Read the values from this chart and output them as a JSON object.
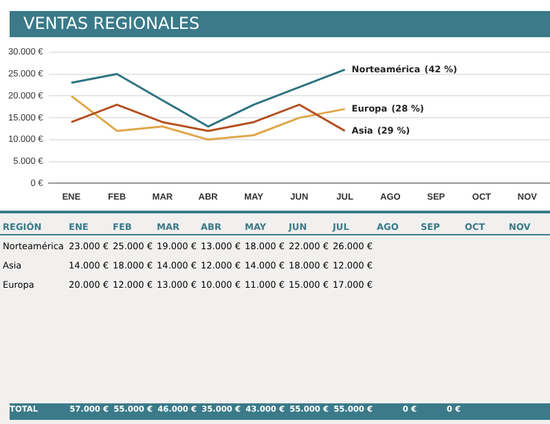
{
  "chart_data": {
    "type": "line",
    "title": "VENTAS REGIONALES",
    "categories": [
      "ENE",
      "FEB",
      "MAR",
      "ABR",
      "MAY",
      "JUN",
      "JUL",
      "AGO",
      "SEP",
      "OCT",
      "NOV"
    ],
    "series": [
      {
        "name": "Norteamérica",
        "color": "#2e7382",
        "values": [
          23000,
          25000,
          19000,
          13000,
          18000,
          22000,
          26000,
          null,
          null,
          null,
          null
        ],
        "value_labels": [
          "23.000 €",
          "25.000 €",
          "19.000 €",
          "13.000 €",
          "18.000 €",
          "22.000 €",
          "26.000 €",
          null,
          null,
          null,
          null
        ]
      },
      {
        "name": "Asia",
        "color": "#b5501f",
        "values": [
          14000,
          18000,
          14000,
          12000,
          14000,
          18000,
          12000,
          null,
          null,
          null,
          null
        ],
        "value_labels": [
          "14.000 €",
          "18.000 €",
          "14.000 €",
          "12.000 €",
          "14.000 €",
          "18.000 €",
          "12.000 €",
          null,
          null,
          null,
          null
        ]
      },
      {
        "name": "Europa",
        "color": "#e0a64a",
        "values": [
          20000,
          12000,
          13000,
          10000,
          11000,
          15000,
          17000,
          null,
          null,
          null,
          null
        ],
        "value_labels": [
          "20.000 €",
          "12.000 €",
          "13.000 €",
          "10.000 €",
          "11.000 €",
          "15.000 €",
          "17.000 €",
          null,
          null,
          null,
          null
        ]
      }
    ],
    "ylim": [
      0,
      30000
    ],
    "yticks": [
      {
        "value": 0,
        "label": "0 €"
      },
      {
        "value": 5000,
        "label": "5.000 €"
      },
      {
        "value": 10000,
        "label": "10.000 €"
      },
      {
        "value": 15000,
        "label": "15.000 €"
      },
      {
        "value": 20000,
        "label": "20.000 €"
      },
      {
        "value": 25000,
        "label": "25.000 €"
      },
      {
        "value": 30000,
        "label": "30.000 €"
      }
    ],
    "grid": "y",
    "legend": false,
    "marker": "none",
    "line_style": "solid",
    "totals": [
      "57.000 €",
      "55.000 €",
      "46.000 €",
      "35.000 €",
      "43.000 €",
      "55.000 €",
      "55.000 €",
      "0 €",
      "0 €",
      null,
      null
    ],
    "annotations": [
      "REGIÓN",
      "TOTAL",
      "(42 %)",
      "(29 %)",
      "(28 %)"
    ]
  }
}
